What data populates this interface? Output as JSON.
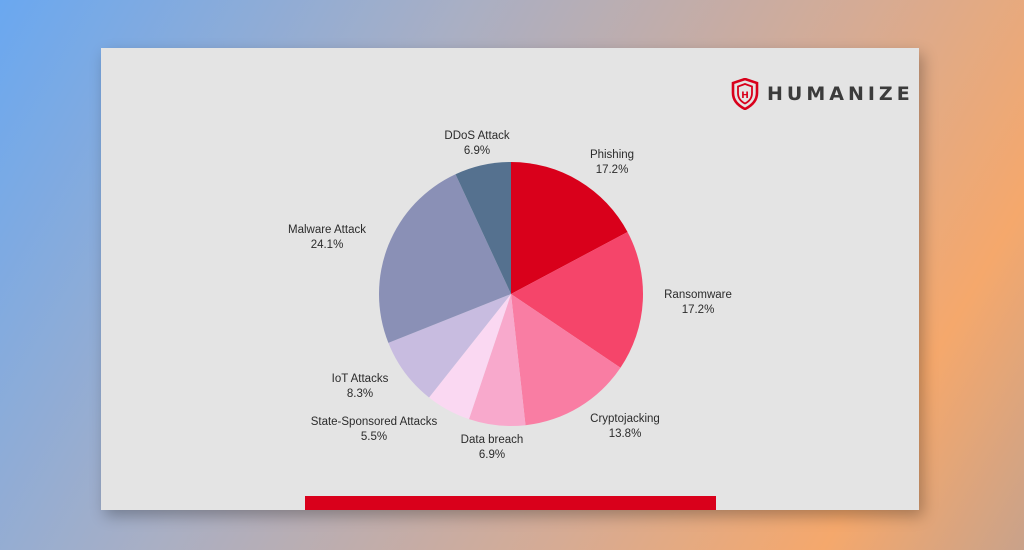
{
  "brand": {
    "name": "HUMANIZE",
    "accent": "#d9001b",
    "icon": "shield-icon"
  },
  "chart_data": {
    "type": "pie",
    "title": "",
    "slices": [
      {
        "label": "Phishing",
        "value": 17.2,
        "value_label": "17.2%",
        "color": "#d9001b"
      },
      {
        "label": "Ransomware",
        "value": 17.2,
        "value_label": "17.2%",
        "color": "#f5456a"
      },
      {
        "label": "Cryptojacking",
        "value": 13.8,
        "value_label": "13.8%",
        "color": "#f97da3"
      },
      {
        "label": "Data breach",
        "value": 6.9,
        "value_label": "6.9%",
        "color": "#f8a9cc"
      },
      {
        "label": "State-Sponsored Attacks",
        "value": 5.5,
        "value_label": "5.5%",
        "color": "#fad8f2"
      },
      {
        "label": "IoT Attacks",
        "value": 8.3,
        "value_label": "8.3%",
        "color": "#c8bce0"
      },
      {
        "label": "Malware Attack",
        "value": 24.1,
        "value_label": "24.1%",
        "color": "#8a90b6"
      },
      {
        "label": "DDoS Attack",
        "value": 6.9,
        "value_label": "6.9%",
        "color": "#55718f"
      }
    ]
  }
}
